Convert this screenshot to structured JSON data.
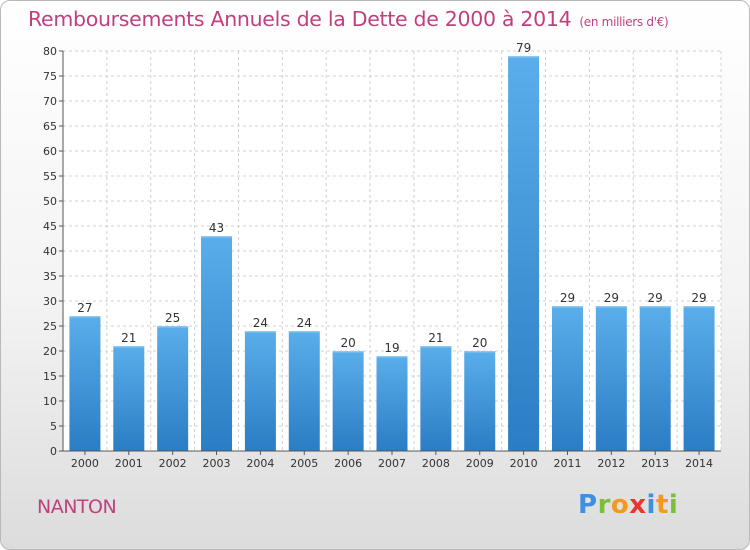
{
  "header": {
    "title": "Remboursements Annuels de la Dette de 2000 à 2014",
    "unit": "(en milliers d'€)"
  },
  "footer": {
    "commune": "NANTON",
    "logo_letters": [
      "P",
      "r",
      "o",
      "x",
      "i",
      "t",
      "i"
    ]
  },
  "colors": {
    "title": "#c0407f",
    "bar_light": "#5aaeea",
    "bar_dark": "#2b7dc4"
  },
  "chart_data": {
    "type": "bar",
    "title": "Remboursements Annuels de la Dette de 2000 à 2014",
    "xlabel": "",
    "ylabel": "",
    "categories": [
      "2000",
      "2001",
      "2002",
      "2003",
      "2004",
      "2005",
      "2006",
      "2007",
      "2008",
      "2009",
      "2010",
      "2011",
      "2012",
      "2013",
      "2014"
    ],
    "values": [
      27,
      21,
      25,
      43,
      24,
      24,
      20,
      19,
      21,
      20,
      79,
      29,
      29,
      29,
      29
    ],
    "ylim": [
      0,
      80
    ],
    "yticks": [
      0,
      5,
      10,
      15,
      20,
      25,
      30,
      35,
      40,
      45,
      50,
      55,
      60,
      65,
      70,
      75,
      80
    ],
    "grid": true,
    "legend": "none"
  }
}
